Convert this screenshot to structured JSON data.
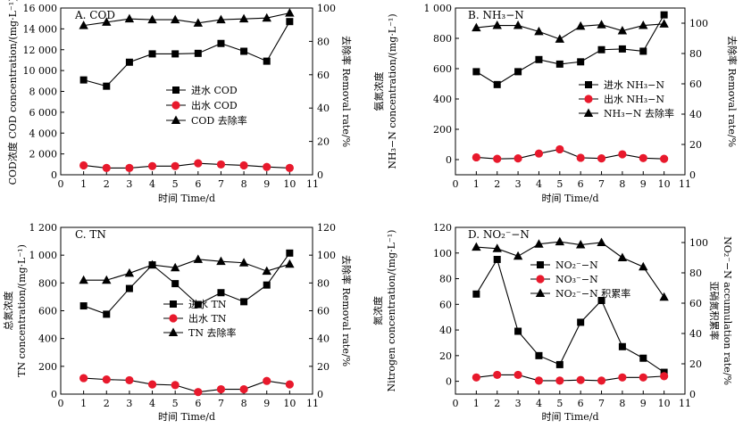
{
  "chart_data": [
    {
      "type": "line",
      "panel": "A. COD",
      "title": "A. COD",
      "xlabel": "时间 Time/d",
      "ylabel_left": "COD浓度 COD concentration/(mg·L⁻¹)",
      "ylabel_right": "去除率 Removal rate/%",
      "xlim": [
        0,
        11
      ],
      "x_ticks": [
        "0",
        "1",
        "2",
        "3",
        "4",
        "5",
        "6",
        "7",
        "8",
        "9",
        "10",
        "11"
      ],
      "ylim_left": [
        0,
        16000
      ],
      "y_ticks_left": [
        "0",
        "2 000",
        "4 000",
        "6 000",
        "8 000",
        "10 000",
        "12 000",
        "14 000",
        "16 000"
      ],
      "ylim_right": [
        0,
        100
      ],
      "y_ticks_right": [
        "0",
        "20",
        "40",
        "60",
        "80",
        "100"
      ],
      "x": [
        1,
        2,
        3,
        4,
        5,
        6,
        7,
        8,
        9,
        10
      ],
      "legend_position": "center",
      "series": [
        {
          "name": "进水 COD",
          "axis": "left",
          "marker": "square",
          "color": "#000000",
          "values": [
            9100,
            8500,
            10800,
            11600,
            11600,
            11650,
            12600,
            11850,
            10900,
            14700
          ]
        },
        {
          "name": "出水 COD",
          "axis": "left",
          "marker": "circle",
          "color": "#e8192c",
          "values": [
            900,
            650,
            650,
            830,
            830,
            1100,
            990,
            900,
            750,
            650
          ]
        },
        {
          "name": "COD 去除率",
          "axis": "right",
          "marker": "triangle",
          "color": "#000000",
          "values": [
            89.5,
            91.5,
            93.5,
            93,
            93,
            91,
            93,
            93.5,
            94,
            97
          ]
        }
      ]
    },
    {
      "type": "line",
      "panel": "B. NH3-N",
      "title": "B. NH₃−N",
      "xlabel": "时间 Time/d",
      "ylabel_left_cn": "氨氮浓度",
      "ylabel_left": "NH₃−N concentration/(mg·L⁻¹)",
      "ylabel_right": "去除率 Removal rate/%",
      "xlim": [
        0,
        11
      ],
      "x_ticks": [
        "0",
        "1",
        "2",
        "3",
        "4",
        "5",
        "6",
        "7",
        "8",
        "9",
        "10",
        "11"
      ],
      "ylim_left": [
        -100,
        1000
      ],
      "y_ticks_left": [
        "0",
        "200",
        "400",
        "600",
        "800",
        "1 000"
      ],
      "ylim_right": [
        0,
        110
      ],
      "y_ticks_right": [
        "0",
        "20",
        "40",
        "60",
        "80",
        "100"
      ],
      "x": [
        1,
        2,
        3,
        4,
        5,
        6,
        7,
        8,
        9,
        10
      ],
      "legend_position": "center-right",
      "series": [
        {
          "name": "进水 NH₃−N",
          "axis": "left",
          "marker": "square",
          "color": "#000000",
          "values": [
            580,
            495,
            580,
            660,
            630,
            645,
            725,
            730,
            715,
            955
          ]
        },
        {
          "name": "出水 NH₃−N",
          "axis": "left",
          "marker": "circle",
          "color": "#e8192c",
          "values": [
            15,
            5,
            8,
            40,
            68,
            12,
            8,
            35,
            10,
            5
          ]
        },
        {
          "name": "NH₃−N 去除率",
          "axis": "right",
          "marker": "triangle",
          "color": "#000000",
          "values": [
            97,
            98.5,
            98.5,
            94.5,
            89.5,
            98,
            99,
            95,
            98.5,
            99.5
          ]
        }
      ]
    },
    {
      "type": "line",
      "panel": "C. TN",
      "title": "C. TN",
      "xlabel": "时间 Time/d",
      "ylabel_left_cn": "总氮浓度",
      "ylabel_left": "TN concentration/(mg·L⁻¹)",
      "ylabel_right": "去除率 Removal rate/%",
      "xlim": [
        0,
        11
      ],
      "x_ticks": [
        "0",
        "1",
        "2",
        "3",
        "4",
        "5",
        "6",
        "7",
        "8",
        "9",
        "10",
        "11"
      ],
      "ylim_left": [
        0,
        1200
      ],
      "y_ticks_left": [
        "0",
        "200",
        "400",
        "600",
        "800",
        "1 000",
        "1 200"
      ],
      "ylim_right": [
        0,
        120
      ],
      "y_ticks_right": [
        "0",
        "20",
        "40",
        "60",
        "80",
        "100",
        "120"
      ],
      "x": [
        1,
        2,
        3,
        4,
        5,
        6,
        7,
        8,
        9,
        10
      ],
      "legend_position": "center-right",
      "series": [
        {
          "name": "进水 TN",
          "axis": "left",
          "marker": "square",
          "color": "#000000",
          "values": [
            635,
            575,
            760,
            930,
            795,
            645,
            730,
            665,
            785,
            1015
          ]
        },
        {
          "name": "出水 TN",
          "axis": "left",
          "marker": "circle",
          "color": "#e8192c",
          "values": [
            115,
            105,
            100,
            70,
            65,
            15,
            35,
            35,
            95,
            70
          ]
        },
        {
          "name": "TN 去除率",
          "axis": "right",
          "marker": "triangle",
          "color": "#000000",
          "values": [
            82,
            82,
            87,
            93,
            91,
            97,
            95.5,
            94.5,
            88.5,
            93.5
          ]
        }
      ]
    },
    {
      "type": "line",
      "panel": "D. NO2-N",
      "title": "D. NO₂⁻−N",
      "xlabel": "时间 Time/d",
      "ylabel_left_cn": "氮浓度",
      "ylabel_left": "Nitrogen concentration/(mg·L⁻¹)",
      "ylabel_right_cn": "亚硝氮积累率",
      "ylabel_right": "NO₂⁻−N accumulation rate/%",
      "xlim": [
        0,
        11
      ],
      "x_ticks": [
        "0",
        "1",
        "2",
        "3",
        "4",
        "5",
        "6",
        "7",
        "8",
        "9",
        "10",
        "11"
      ],
      "ylim_left": [
        -10,
        120
      ],
      "y_ticks_left": [
        "0",
        "20",
        "40",
        "60",
        "80",
        "100",
        "120"
      ],
      "ylim_right": [
        0,
        110
      ],
      "y_ticks_right": [
        "0",
        "20",
        "40",
        "60",
        "80",
        "100"
      ],
      "x": [
        1,
        2,
        3,
        4,
        5,
        6,
        7,
        8,
        9,
        10
      ],
      "legend_position": "top-center",
      "series": [
        {
          "name": "NO₂⁻−N",
          "axis": "left",
          "marker": "square",
          "color": "#000000",
          "values": [
            68,
            95,
            39,
            20,
            13,
            46,
            63,
            27,
            18,
            7
          ]
        },
        {
          "name": "NO₃⁻−N",
          "axis": "left",
          "marker": "circle",
          "color": "#e8192c",
          "values": [
            3,
            5,
            5,
            0.5,
            0.5,
            1,
            0.5,
            3,
            3,
            4
          ]
        },
        {
          "name": "NO₂⁻−N 积累率",
          "axis": "right",
          "marker": "triangle",
          "color": "#000000",
          "values": [
            97,
            96,
            91,
            99,
            100.5,
            98.5,
            100,
            90,
            84,
            64
          ]
        }
      ]
    }
  ]
}
